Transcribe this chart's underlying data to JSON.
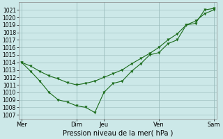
{
  "xlabel": "Pression niveau de la mer( hPa )",
  "bg_color": "#cce8e8",
  "grid_color": "#99bbbb",
  "line_color": "#1a6b1a",
  "ylim": [
    1006.5,
    1022
  ],
  "yticks": [
    1007,
    1008,
    1009,
    1010,
    1011,
    1012,
    1013,
    1014,
    1015,
    1016,
    1017,
    1018,
    1019,
    1020,
    1021
  ],
  "xtick_labels": [
    "Mer",
    "Dim",
    "Jeu",
    "Ven",
    "Sam"
  ],
  "xtick_positions": [
    0,
    6,
    9,
    15,
    21
  ],
  "vline_positions": [
    0,
    6,
    9,
    15,
    21
  ],
  "line1_x": [
    0,
    1,
    2,
    3,
    4,
    5,
    6,
    7,
    8,
    9,
    10,
    11,
    12,
    13,
    14,
    15,
    16,
    17,
    18,
    19,
    20,
    21
  ],
  "line1_y": [
    1014.0,
    1012.8,
    1011.5,
    1010.0,
    1009.0,
    1008.7,
    1008.2,
    1008.0,
    1007.3,
    1010.0,
    1011.2,
    1011.5,
    1012.8,
    1013.8,
    1015.0,
    1015.3,
    1016.5,
    1017.0,
    1019.0,
    1019.2,
    1021.0,
    1021.2
  ],
  "line2_x": [
    0,
    1,
    2,
    3,
    4,
    5,
    6,
    7,
    8,
    9,
    10,
    11,
    12,
    13,
    14,
    15,
    16,
    17,
    18,
    19,
    20,
    21
  ],
  "line2_y": [
    1014.0,
    1013.5,
    1012.8,
    1012.2,
    1011.8,
    1011.3,
    1011.0,
    1011.2,
    1011.5,
    1012.0,
    1012.5,
    1013.0,
    1013.8,
    1014.5,
    1015.2,
    1016.0,
    1017.0,
    1017.8,
    1019.0,
    1019.5,
    1020.5,
    1021.0
  ],
  "xlim": [
    -0.3,
    21.3
  ],
  "ytick_fontsize": 5.5,
  "xtick_fontsize": 6.0,
  "xlabel_fontsize": 7.0
}
